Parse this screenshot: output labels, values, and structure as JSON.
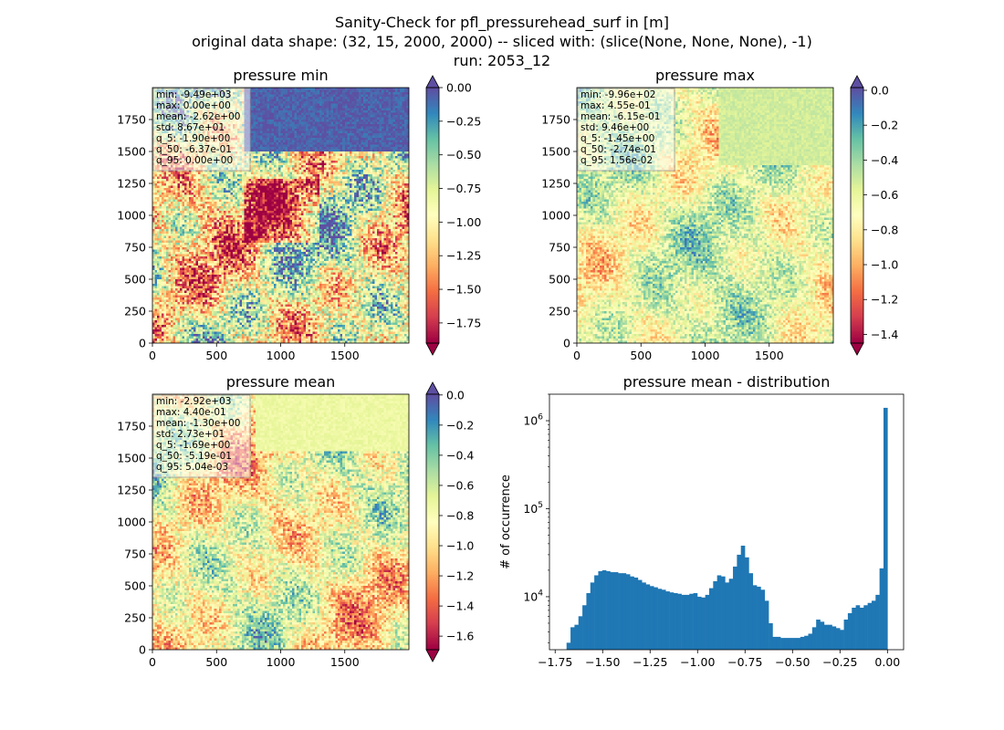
{
  "figure": {
    "title_lines": [
      "Sanity-Check for pfl_pressurehead_surf in [m]",
      "original data shape: (32, 15, 2000, 2000) -- sliced with: (slice(None, None, None), -1)",
      "run: 2053_12"
    ]
  },
  "colors": {
    "spectral": [
      "#9e0142",
      "#d53e4f",
      "#f46d43",
      "#fdae61",
      "#fee08b",
      "#ffffbf",
      "#e6f598",
      "#abdda4",
      "#66c2a5",
      "#3288bd",
      "#5e4fa2"
    ],
    "histogram": "#1f77b4"
  },
  "chart_data": [
    {
      "type": "heatmap",
      "title": "pressure min",
      "xlim": [
        0,
        2000
      ],
      "ylim": [
        0,
        2000
      ],
      "xticks": [
        "0",
        "500",
        "1000",
        "1500"
      ],
      "yticks": [
        "0",
        "250",
        "500",
        "750",
        "1000",
        "1250",
        "1500",
        "1750"
      ],
      "colorbar": {
        "vmin": -1.9,
        "vmax": 0.0,
        "extend": "both",
        "ticks": [
          "0.00",
          "−0.25",
          "−0.50",
          "−0.75",
          "−1.00",
          "−1.25",
          "−1.50",
          "−1.75"
        ]
      },
      "stats": [
        "min: -9.49e+03",
        "max: 0.00e+00",
        "mean: -2.62e+00",
        "std: 8.67e+01",
        "q_5: -1.90e+00",
        "q_50: -6.37e-01",
        "q_95: 0.00e+00"
      ]
    },
    {
      "type": "heatmap",
      "title": "pressure max",
      "xlim": [
        0,
        2000
      ],
      "ylim": [
        0,
        2000
      ],
      "xticks": [
        "0",
        "500",
        "1000",
        "1500"
      ],
      "yticks": [
        "0",
        "250",
        "500",
        "750",
        "1000",
        "1250",
        "1500",
        "1750"
      ],
      "colorbar": {
        "vmin": -1.45,
        "vmax": 0.0156,
        "extend": "both",
        "ticks": [
          "0.0",
          "−0.2",
          "−0.4",
          "−0.6",
          "−0.8",
          "−1.0",
          "−1.2",
          "−1.4"
        ]
      },
      "stats": [
        "min: -9.96e+02",
        "max: 4.55e-01",
        "mean: -6.15e-01",
        "std: 9.46e+00",
        "q_5: -1.45e+00",
        "q_50: -2.74e-01",
        "q_95: 1.56e-02"
      ]
    },
    {
      "type": "heatmap",
      "title": "pressure mean",
      "xlim": [
        0,
        2000
      ],
      "ylim": [
        0,
        2000
      ],
      "xticks": [
        "0",
        "500",
        "1000",
        "1500"
      ],
      "yticks": [
        "0",
        "250",
        "500",
        "750",
        "1000",
        "1250",
        "1500",
        "1750"
      ],
      "colorbar": {
        "vmin": -1.69,
        "vmax": 0.00504,
        "extend": "both",
        "ticks": [
          "0.0",
          "−0.2",
          "−0.4",
          "−0.6",
          "−0.8",
          "−1.0",
          "−1.2",
          "−1.4",
          "−1.6"
        ]
      },
      "stats": [
        "min: -2.92e+03",
        "max: 4.40e-01",
        "mean: -1.30e+00",
        "std: 2.73e+01",
        "q_5: -1.69e+00",
        "q_50: -5.19e-01",
        "q_95: 5.04e-03"
      ]
    },
    {
      "type": "bar",
      "title": "pressure mean - distribution",
      "xlabel": "",
      "ylabel": "# of occurrence",
      "yscale": "log",
      "xlim": [
        -1.78,
        0.085
      ],
      "ylim": [
        2500,
        2000000
      ],
      "xticks": [
        -1.75,
        -1.5,
        -1.25,
        -1.0,
        -0.75,
        -0.5,
        -0.25,
        0.0
      ],
      "xtick_labels": [
        "−1.75",
        "−1.50",
        "−1.25",
        "−1.00",
        "−0.75",
        "−0.50",
        "−0.25",
        "0.00"
      ],
      "yticks": [
        10000,
        100000,
        1000000
      ],
      "ytick_labels": [
        "10^4",
        "10^5",
        "10^6"
      ],
      "bin_range": [
        -1.69,
        0.0
      ],
      "counts": [
        3000,
        4500,
        4800,
        6000,
        8000,
        11000,
        14500,
        17500,
        19500,
        20000,
        19500,
        19000,
        19000,
        18500,
        18500,
        18000,
        17000,
        16500,
        15500,
        14500,
        13800,
        13200,
        12800,
        12300,
        12000,
        11500,
        11200,
        11000,
        10800,
        10500,
        10500,
        10800,
        11000,
        10000,
        9800,
        10500,
        12500,
        15000,
        17500,
        17000,
        14500,
        16000,
        22000,
        30000,
        38000,
        28000,
        18500,
        13500,
        13000,
        12000,
        9000,
        5000,
        3500,
        3500,
        3400,
        3400,
        3400,
        3400,
        3400,
        3500,
        3600,
        3800,
        4500,
        5500,
        5200,
        4800,
        4800,
        4600,
        4400,
        4200,
        5500,
        6500,
        7500,
        8000,
        7500,
        8000,
        8500,
        9000,
        10500,
        21000,
        1400000
      ]
    }
  ]
}
